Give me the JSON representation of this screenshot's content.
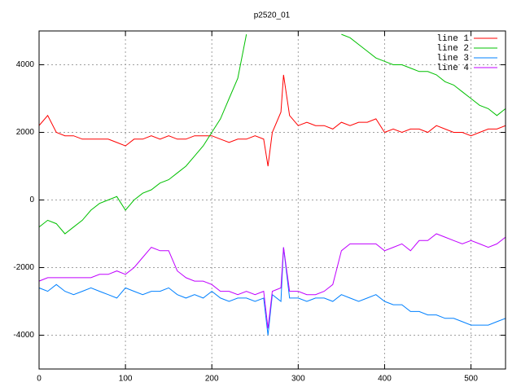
{
  "chart_data": {
    "type": "line",
    "title": "p2520_01",
    "x": [
      0,
      10,
      20,
      30,
      40,
      50,
      60,
      70,
      80,
      90,
      100,
      110,
      120,
      130,
      140,
      150,
      160,
      170,
      180,
      190,
      200,
      210,
      220,
      230,
      240,
      250,
      260,
      265,
      270,
      280,
      283,
      290,
      300,
      310,
      320,
      330,
      340,
      350,
      360,
      370,
      380,
      390,
      400,
      410,
      420,
      430,
      440,
      450,
      460,
      470,
      480,
      490,
      500,
      510,
      520,
      530,
      540
    ],
    "series": [
      {
        "name": "line 1",
        "color": "#ff0000",
        "values": [
          2200,
          2500,
          2000,
          1900,
          1900,
          1800,
          1800,
          1800,
          1800,
          1700,
          1600,
          1800,
          1800,
          1900,
          1800,
          1900,
          1800,
          1800,
          1900,
          1900,
          1900,
          1800,
          1700,
          1800,
          1800,
          1900,
          1800,
          1000,
          2000,
          2600,
          3700,
          2500,
          2200,
          2300,
          2200,
          2200,
          2100,
          2300,
          2200,
          2300,
          2300,
          2400,
          2000,
          2100,
          2000,
          2100,
          2100,
          2000,
          2200,
          2100,
          2000,
          2000,
          1900,
          2000,
          2100,
          2100,
          2200
        ]
      },
      {
        "name": "line 2",
        "color": "#00c000",
        "values": [
          -800,
          -600,
          -700,
          -1000,
          -800,
          -600,
          -300,
          -100,
          0,
          100,
          -300,
          0,
          200,
          300,
          500,
          600,
          800,
          1000,
          1300,
          1600,
          2000,
          2400,
          3000,
          3600,
          4900,
          null,
          null,
          null,
          null,
          null,
          null,
          null,
          null,
          null,
          null,
          null,
          null,
          4900,
          4800,
          4600,
          4400,
          4200,
          4100,
          4000,
          4000,
          3900,
          3800,
          3800,
          3700,
          3500,
          3400,
          3200,
          3000,
          2800,
          2700,
          2500,
          2700
        ]
      },
      {
        "name": "line 3",
        "color": "#0080ff",
        "values": [
          -2600,
          -2700,
          -2500,
          -2700,
          -2800,
          -2700,
          -2600,
          -2700,
          -2800,
          -2900,
          -2600,
          -2700,
          -2800,
          -2700,
          -2700,
          -2600,
          -2800,
          -2900,
          -2800,
          -2900,
          -2700,
          -2900,
          -3000,
          -2900,
          -2900,
          -3000,
          -2900,
          -4000,
          -2800,
          -3000,
          -1400,
          -2900,
          -2900,
          -3000,
          -2900,
          -2900,
          -3000,
          -2800,
          -2900,
          -3000,
          -2900,
          -2800,
          -3000,
          -3100,
          -3100,
          -3300,
          -3300,
          -3400,
          -3400,
          -3500,
          -3500,
          -3600,
          -3700,
          -3700,
          -3700,
          -3600,
          -3500
        ]
      },
      {
        "name": "line 4",
        "color": "#c000ff",
        "values": [
          -2400,
          -2300,
          -2300,
          -2300,
          -2300,
          -2300,
          -2300,
          -2200,
          -2200,
          -2100,
          -2200,
          -2000,
          -1700,
          -1400,
          -1500,
          -1500,
          -2100,
          -2300,
          -2400,
          -2400,
          -2500,
          -2700,
          -2700,
          -2800,
          -2700,
          -2800,
          -2700,
          -3800,
          -2700,
          -2600,
          -1400,
          -2700,
          -2700,
          -2800,
          -2800,
          -2700,
          -2500,
          -1500,
          -1300,
          -1300,
          -1300,
          -1300,
          -1500,
          -1400,
          -1300,
          -1500,
          -1200,
          -1200,
          -1000,
          -1100,
          -1200,
          -1300,
          -1200,
          -1300,
          -1400,
          -1300,
          -1100
        ]
      }
    ],
    "xlim": [
      0,
      540
    ],
    "xticks": [
      0,
      100,
      200,
      300,
      400,
      500
    ],
    "ylim": [
      -5000,
      5000
    ],
    "yticks": [
      -4000,
      -2000,
      0,
      2000,
      4000
    ],
    "grid": true,
    "legend": "top-right"
  }
}
